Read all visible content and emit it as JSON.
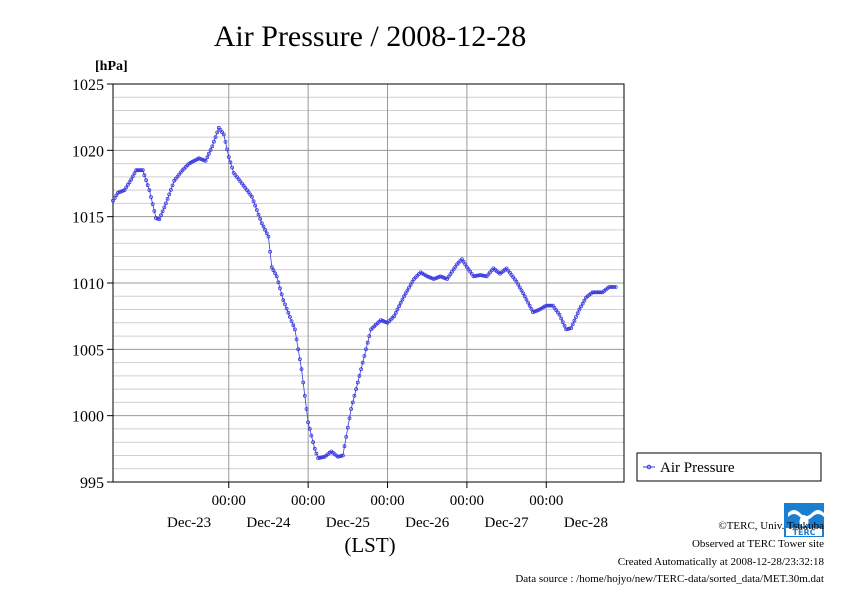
{
  "chart_data": {
    "type": "line",
    "title": "Air Pressure / 2008-12-28",
    "ylabel": "[hPa]",
    "xlabel": "(LST)",
    "ylim": [
      995,
      1025
    ],
    "yticks": [
      995,
      1000,
      1005,
      1010,
      1015,
      1020,
      1025
    ],
    "y_minor_step": 1,
    "xlim": [
      "2008-12-22 13:00",
      "2008-12-28 23:30"
    ],
    "xticks": [
      {
        "time": "2008-12-24 00:00",
        "label": "00:00"
      },
      {
        "time": "2008-12-25 00:00",
        "label": "00:00"
      },
      {
        "time": "2008-12-26 00:00",
        "label": "00:00"
      },
      {
        "time": "2008-12-27 00:00",
        "label": "00:00"
      },
      {
        "time": "2008-12-28 00:00",
        "label": "00:00"
      }
    ],
    "day_labels": [
      {
        "time": "2008-12-23 12:00",
        "label": "Dec-23"
      },
      {
        "time": "2008-12-24 12:00",
        "label": "Dec-24"
      },
      {
        "time": "2008-12-25 12:00",
        "label": "Dec-25"
      },
      {
        "time": "2008-12-26 12:00",
        "label": "Dec-26"
      },
      {
        "time": "2008-12-27 12:00",
        "label": "Dec-27"
      },
      {
        "time": "2008-12-28 12:00",
        "label": "Dec-28"
      }
    ],
    "grid": true,
    "legend_position": "right",
    "series": [
      {
        "name": "Air Pressure",
        "color": "#3a3ae0",
        "interval_minutes": 30,
        "start": "2008-12-22 13:00",
        "keypoints": [
          [
            "2008-12-22 13:00",
            1016.2
          ],
          [
            "2008-12-22 14:30",
            1016.8
          ],
          [
            "2008-12-22 16:30",
            1017.0
          ],
          [
            "2008-12-22 18:30",
            1017.8
          ],
          [
            "2008-12-22 20:00",
            1018.5
          ],
          [
            "2008-12-22 22:00",
            1018.5
          ],
          [
            "2008-12-23 00:00",
            1017.0
          ],
          [
            "2008-12-23 02:00",
            1014.9
          ],
          [
            "2008-12-23 03:00",
            1014.8
          ],
          [
            "2008-12-23 05:00",
            1016.0
          ],
          [
            "2008-12-23 07:30",
            1017.7
          ],
          [
            "2008-12-23 10:00",
            1018.5
          ],
          [
            "2008-12-23 12:00",
            1019.0
          ],
          [
            "2008-12-23 15:00",
            1019.4
          ],
          [
            "2008-12-23 17:00",
            1019.2
          ],
          [
            "2008-12-23 19:00",
            1020.3
          ],
          [
            "2008-12-23 21:00",
            1021.7
          ],
          [
            "2008-12-23 22:30",
            1021.2
          ],
          [
            "2008-12-24 00:00",
            1019.5
          ],
          [
            "2008-12-24 01:30",
            1018.3
          ],
          [
            "2008-12-24 04:00",
            1017.5
          ],
          [
            "2008-12-24 05:30",
            1017.0
          ],
          [
            "2008-12-24 07:00",
            1016.5
          ],
          [
            "2008-12-24 10:00",
            1014.5
          ],
          [
            "2008-12-24 12:00",
            1013.5
          ],
          [
            "2008-12-24 13:00",
            1011.2
          ],
          [
            "2008-12-24 14:30",
            1010.5
          ],
          [
            "2008-12-24 16:30",
            1008.7
          ],
          [
            "2008-12-24 20:00",
            1006.5
          ],
          [
            "2008-12-24 22:00",
            1003.5
          ],
          [
            "2008-12-25 00:00",
            999.5
          ],
          [
            "2008-12-25 02:00",
            997.5
          ],
          [
            "2008-12-25 03:00",
            996.8
          ],
          [
            "2008-12-25 05:00",
            996.9
          ],
          [
            "2008-12-25 07:00",
            997.3
          ],
          [
            "2008-12-25 09:00",
            996.9
          ],
          [
            "2008-12-25 10:30",
            997.0
          ],
          [
            "2008-12-25 13:00",
            1000.5
          ],
          [
            "2008-12-25 16:00",
            1003.5
          ],
          [
            "2008-12-25 19:00",
            1006.5
          ],
          [
            "2008-12-25 22:00",
            1007.2
          ],
          [
            "2008-12-26 00:00",
            1007.0
          ],
          [
            "2008-12-26 02:00",
            1007.5
          ],
          [
            "2008-12-26 05:00",
            1009.0
          ],
          [
            "2008-12-26 08:00",
            1010.3
          ],
          [
            "2008-12-26 10:00",
            1010.8
          ],
          [
            "2008-12-26 12:00",
            1010.5
          ],
          [
            "2008-12-26 14:00",
            1010.3
          ],
          [
            "2008-12-26 16:00",
            1010.5
          ],
          [
            "2008-12-26 18:00",
            1010.3
          ],
          [
            "2008-12-26 21:00",
            1011.4
          ],
          [
            "2008-12-26 22:30",
            1011.8
          ],
          [
            "2008-12-27 00:00",
            1011.2
          ],
          [
            "2008-12-27 02:00",
            1010.5
          ],
          [
            "2008-12-27 04:00",
            1010.6
          ],
          [
            "2008-12-27 06:00",
            1010.5
          ],
          [
            "2008-12-27 08:00",
            1011.1
          ],
          [
            "2008-12-27 10:00",
            1010.7
          ],
          [
            "2008-12-27 12:00",
            1011.1
          ],
          [
            "2008-12-27 15:00",
            1010.1
          ],
          [
            "2008-12-27 17:30",
            1009.0
          ],
          [
            "2008-12-27 20:00",
            1007.8
          ],
          [
            "2008-12-27 22:00",
            1008.0
          ],
          [
            "2008-12-28 00:00",
            1008.3
          ],
          [
            "2008-12-28 02:00",
            1008.3
          ],
          [
            "2008-12-28 04:00",
            1007.6
          ],
          [
            "2008-12-28 06:00",
            1006.5
          ],
          [
            "2008-12-28 07:30",
            1006.6
          ],
          [
            "2008-12-28 10:00",
            1008.0
          ],
          [
            "2008-12-28 12:00",
            1008.9
          ],
          [
            "2008-12-28 14:00",
            1009.3
          ],
          [
            "2008-12-28 17:00",
            1009.3
          ],
          [
            "2008-12-28 19:00",
            1009.7
          ],
          [
            "2008-12-28 21:00",
            1009.7
          ]
        ]
      }
    ]
  },
  "footer": {
    "copyright": "©TERC, Univ. Tsukuba",
    "observed": "Observed at TERC Tower site",
    "created": "Created Automatically at 2008-12-28/23:32:18",
    "source": "Data source : /home/hojyo/new/TERC-data/sorted_data/MET.30m.dat"
  },
  "logo": {
    "text": "TERC",
    "color": "#1a7fd1"
  }
}
